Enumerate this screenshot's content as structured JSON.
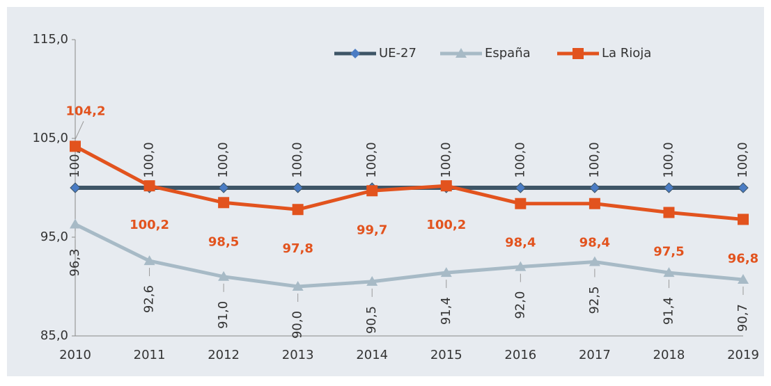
{
  "chart_data": {
    "type": "line",
    "categories": [
      "2010",
      "2011",
      "2012",
      "2013",
      "2014",
      "2015",
      "2016",
      "2017",
      "2018",
      "2019"
    ],
    "series": [
      {
        "name": "UE-27",
        "color": "#3e5566",
        "marker_color": "#4a7cc4",
        "marker": "diamond",
        "values": [
          100,
          100,
          100,
          100,
          100,
          100,
          100,
          100,
          100,
          100
        ],
        "value_labels": [
          "100,0",
          "100,0",
          "100,0",
          "100,0",
          "100,0",
          "100,0",
          "100,0",
          "100,0",
          "100,0",
          "100,0"
        ]
      },
      {
        "name": "España",
        "color": "#a7bac6",
        "marker_color": "#a7bac6",
        "marker": "triangle",
        "values": [
          96.3,
          92.6,
          91.0,
          90.0,
          90.5,
          91.4,
          92.0,
          92.5,
          91.4,
          90.7
        ],
        "value_labels": [
          "96,3",
          "92,6",
          "91,0",
          "90,0",
          "90,5",
          "91,4",
          "92,0",
          "92,5",
          "91,4",
          "90,7"
        ]
      },
      {
        "name": "La Rioja",
        "color": "#e2531e",
        "marker_color": "#e2531e",
        "marker": "square",
        "values": [
          104.2,
          100.2,
          98.5,
          97.8,
          99.7,
          100.2,
          98.4,
          98.4,
          97.5,
          96.8
        ],
        "value_labels": [
          "104,2",
          "100,2",
          "98,5",
          "97,8",
          "99,7",
          "100,2",
          "98,4",
          "98,4",
          "97,5",
          "96,8"
        ]
      }
    ],
    "ylim": [
      85,
      115
    ],
    "yticks": [
      {
        "value": 85,
        "label": "85,0"
      },
      {
        "value": 95,
        "label": "95,0"
      },
      {
        "value": 105,
        "label": "105,0"
      },
      {
        "value": 115,
        "label": "115,0"
      }
    ],
    "legend": "top"
  }
}
